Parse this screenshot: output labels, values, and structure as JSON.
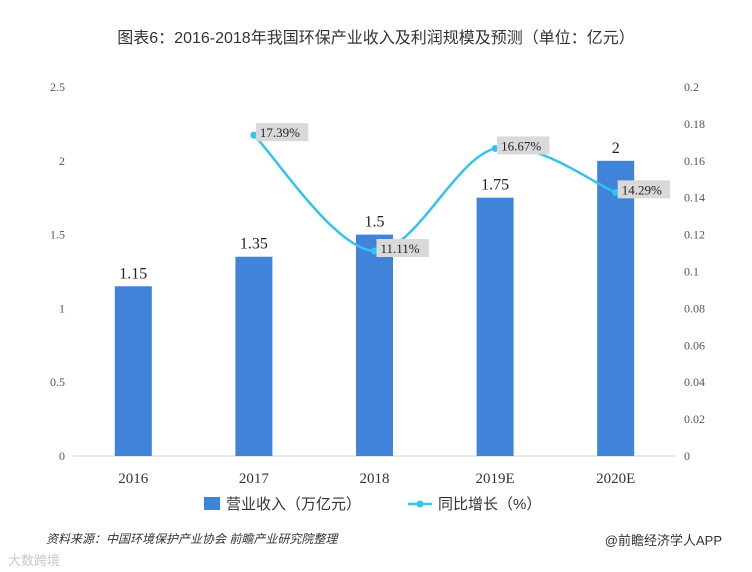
{
  "chart_data": {
    "type": "bar",
    "title": "图表6：2016-2018年我国环保产业收入及利润规模及预测（单位：亿元）",
    "categories": [
      "2016",
      "2017",
      "2018",
      "2019E",
      "2020E"
    ],
    "series": [
      {
        "name": "营业收入（万亿元）",
        "type": "bar",
        "axis": "left",
        "values": [
          1.15,
          1.35,
          1.5,
          1.75,
          2
        ],
        "labels": [
          "1.15",
          "1.35",
          "1.5",
          "1.75",
          "2"
        ]
      },
      {
        "name": "同比增长（%）",
        "type": "line",
        "axis": "right",
        "values": [
          null,
          0.1739,
          0.1111,
          0.1667,
          0.1429
        ],
        "labels": [
          null,
          "17.39%",
          "11.11%",
          "16.67%",
          "14.29%"
        ]
      }
    ],
    "ylim_left": [
      0,
      2.5
    ],
    "yticks_left": [
      "0",
      "0.5",
      "1",
      "1.5",
      "2",
      "2.5"
    ],
    "ylim_right": [
      0,
      0.2
    ],
    "yticks_right": [
      "0",
      "0.02",
      "0.04",
      "0.06",
      "0.08",
      "0.1",
      "0.12",
      "0.14",
      "0.16",
      "0.18",
      "0.2"
    ],
    "legend_position": "bottom",
    "grid": false
  },
  "colors": {
    "bar": "#3f84d8",
    "line": "#35c2ee",
    "label_box": "#d9d9d9"
  },
  "footer": {
    "source": "资料来源：中国环境保护产业协会 前瞻产业研究院整理",
    "brand": "@前瞻经济学人APP",
    "corner": "大数跨境"
  }
}
